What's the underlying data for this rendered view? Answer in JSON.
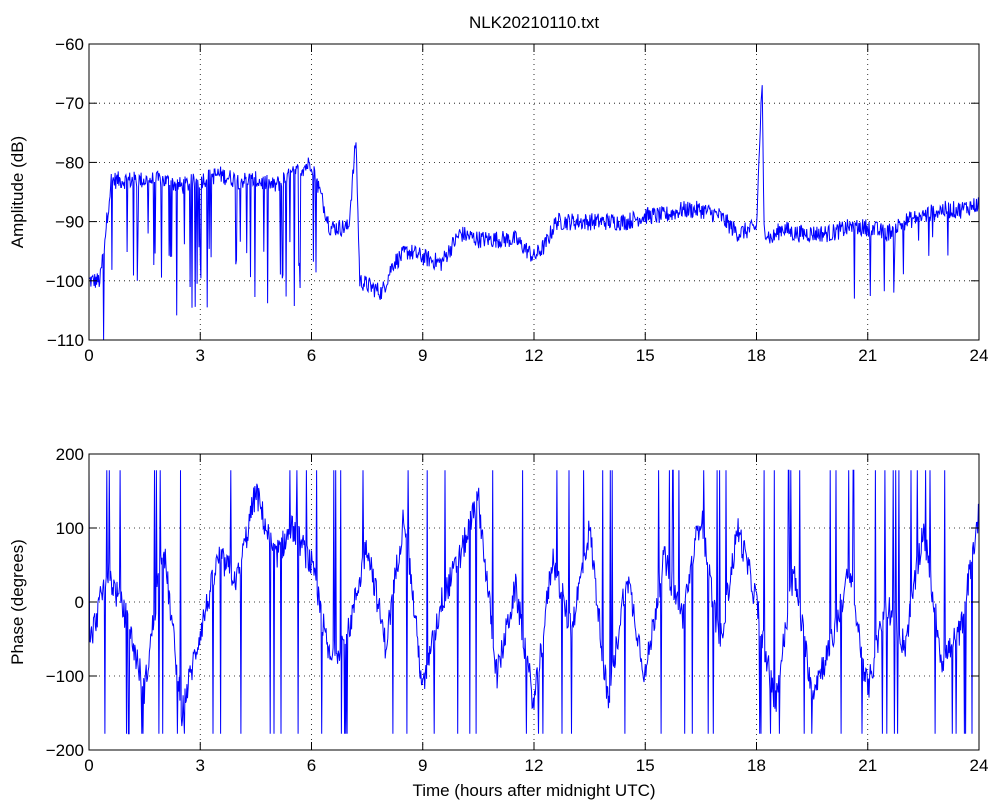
{
  "chart_data": [
    {
      "type": "line",
      "title": "NLK20210110.txt",
      "xlabel": "",
      "ylabel": "Amplitude (dB)",
      "xlim": [
        0,
        24
      ],
      "ylim": [
        -110,
        -60
      ],
      "xticks": [
        "0",
        "3",
        "6",
        "9",
        "12",
        "15",
        "18",
        "21",
        "24"
      ],
      "yticks": [
        "−60",
        "−70",
        "−80",
        "−90",
        "−100",
        "−110"
      ],
      "grid": true,
      "line_color": "#0000ff",
      "series": [
        {
          "x": [
            0,
            0.3,
            0.6,
            1.0,
            1.5,
            2.0,
            2.5,
            3.0,
            3.5,
            4.0,
            4.5,
            5.0,
            5.5,
            6.0,
            6.5,
            7.0,
            7.2,
            7.3,
            7.6,
            7.9,
            8.2,
            8.6,
            9.0,
            9.5,
            10.0,
            10.5,
            11.0,
            11.5,
            12.0,
            12.3,
            12.6,
            13.0,
            13.5,
            14.0,
            14.5,
            15.0,
            15.5,
            16.0,
            16.5,
            17.0,
            17.5,
            18.0,
            18.15,
            18.2,
            18.4,
            18.7,
            19.0,
            19.5,
            20.0,
            20.5,
            21.0,
            21.5,
            22.0,
            22.5,
            23.0,
            23.5,
            24.0
          ],
          "values": [
            -100,
            -100,
            -83,
            -83,
            -83,
            -83,
            -84,
            -83,
            -82,
            -83,
            -83,
            -84,
            -82,
            -80,
            -91,
            -91,
            -76,
            -100,
            -101,
            -102,
            -97,
            -95,
            -96,
            -97,
            -92,
            -93,
            -93,
            -93,
            -96,
            -94,
            -90,
            -90,
            -90,
            -90,
            -90,
            -89,
            -89,
            -88,
            -88,
            -89,
            -92,
            -91,
            -66,
            -91,
            -93,
            -91,
            -92,
            -92,
            -92,
            -91,
            -91,
            -92,
            -90,
            -89,
            -88,
            -88,
            -87
          ]
        }
      ]
    },
    {
      "type": "line",
      "title": "",
      "xlabel": "Time (hours after midnight UTC)",
      "ylabel": "Phase (degrees)",
      "xlim": [
        0,
        24
      ],
      "ylim": [
        -200,
        200
      ],
      "xticks": [
        "0",
        "3",
        "6",
        "9",
        "12",
        "15",
        "18",
        "21",
        "24"
      ],
      "yticks": [
        "200",
        "100",
        "0",
        "−100",
        "−200"
      ],
      "grid": true,
      "line_color": "#0000ff",
      "phase_wraps": "values wrap between -180 and 180 degrees",
      "series": [
        {
          "x": [
            0,
            0.5,
            1.0,
            1.5,
            2.0,
            2.5,
            3.0,
            3.5,
            4.0,
            4.5,
            5.0,
            5.5,
            6.0,
            6.5,
            7.0,
            7.5,
            8.0,
            8.5,
            9.0,
            9.5,
            10.0,
            10.5,
            11.0,
            11.5,
            12.0,
            12.5,
            13.0,
            13.5,
            14.0,
            14.5,
            15.0,
            15.5,
            16.0,
            16.5,
            17.0,
            17.5,
            18.0,
            18.5,
            19.0,
            19.5,
            20.0,
            20.5,
            21.0,
            21.5,
            22.0,
            22.5,
            23.0,
            23.5,
            24.0
          ],
          "values": [
            -60,
            40,
            -20,
            -120,
            80,
            -150,
            -40,
            60,
            30,
            150,
            60,
            100,
            50,
            -80,
            -40,
            80,
            -60,
            120,
            -120,
            0,
            60,
            140,
            -100,
            20,
            -140,
            60,
            -40,
            100,
            -140,
            40,
            -100,
            60,
            -20,
            120,
            -60,
            100,
            0,
            -140,
            40,
            -120,
            -60,
            40,
            -120,
            0,
            -60,
            100,
            -80,
            -40,
            120
          ]
        }
      ]
    }
  ]
}
